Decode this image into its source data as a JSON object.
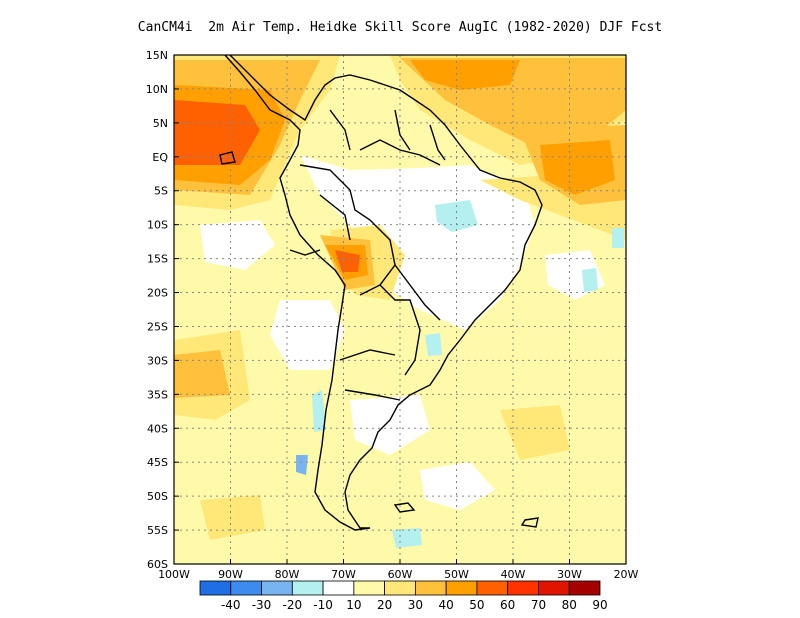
{
  "title": "CanCM4i  2m Air Temp. Heidke Skill Score AugIC (1982-2020) DJF Fcst",
  "lat_labels": [
    "15N",
    "10N",
    "5N",
    "EQ",
    "5S",
    "10S",
    "15S",
    "20S",
    "25S",
    "30S",
    "35S",
    "40S",
    "45S",
    "50S",
    "55S",
    "60S"
  ],
  "lon_labels": [
    "100W",
    "90W",
    "80W",
    "70W",
    "60W",
    "50W",
    "40W",
    "30W",
    "20W"
  ],
  "colorbar": {
    "labels": [
      "-40",
      "-30",
      "-20",
      "-10",
      "10",
      "20",
      "30",
      "40",
      "50",
      "60",
      "70",
      "80",
      "90"
    ],
    "colors": [
      "#1e6ee6",
      "#3c8cf0",
      "#78b4f0",
      "#b4f0f0",
      "#ffffff",
      "#fffaaa",
      "#ffe878",
      "#ffc03c",
      "#ffa000",
      "#ff6000",
      "#ff3200",
      "#e11400",
      "#a50000"
    ]
  }
}
